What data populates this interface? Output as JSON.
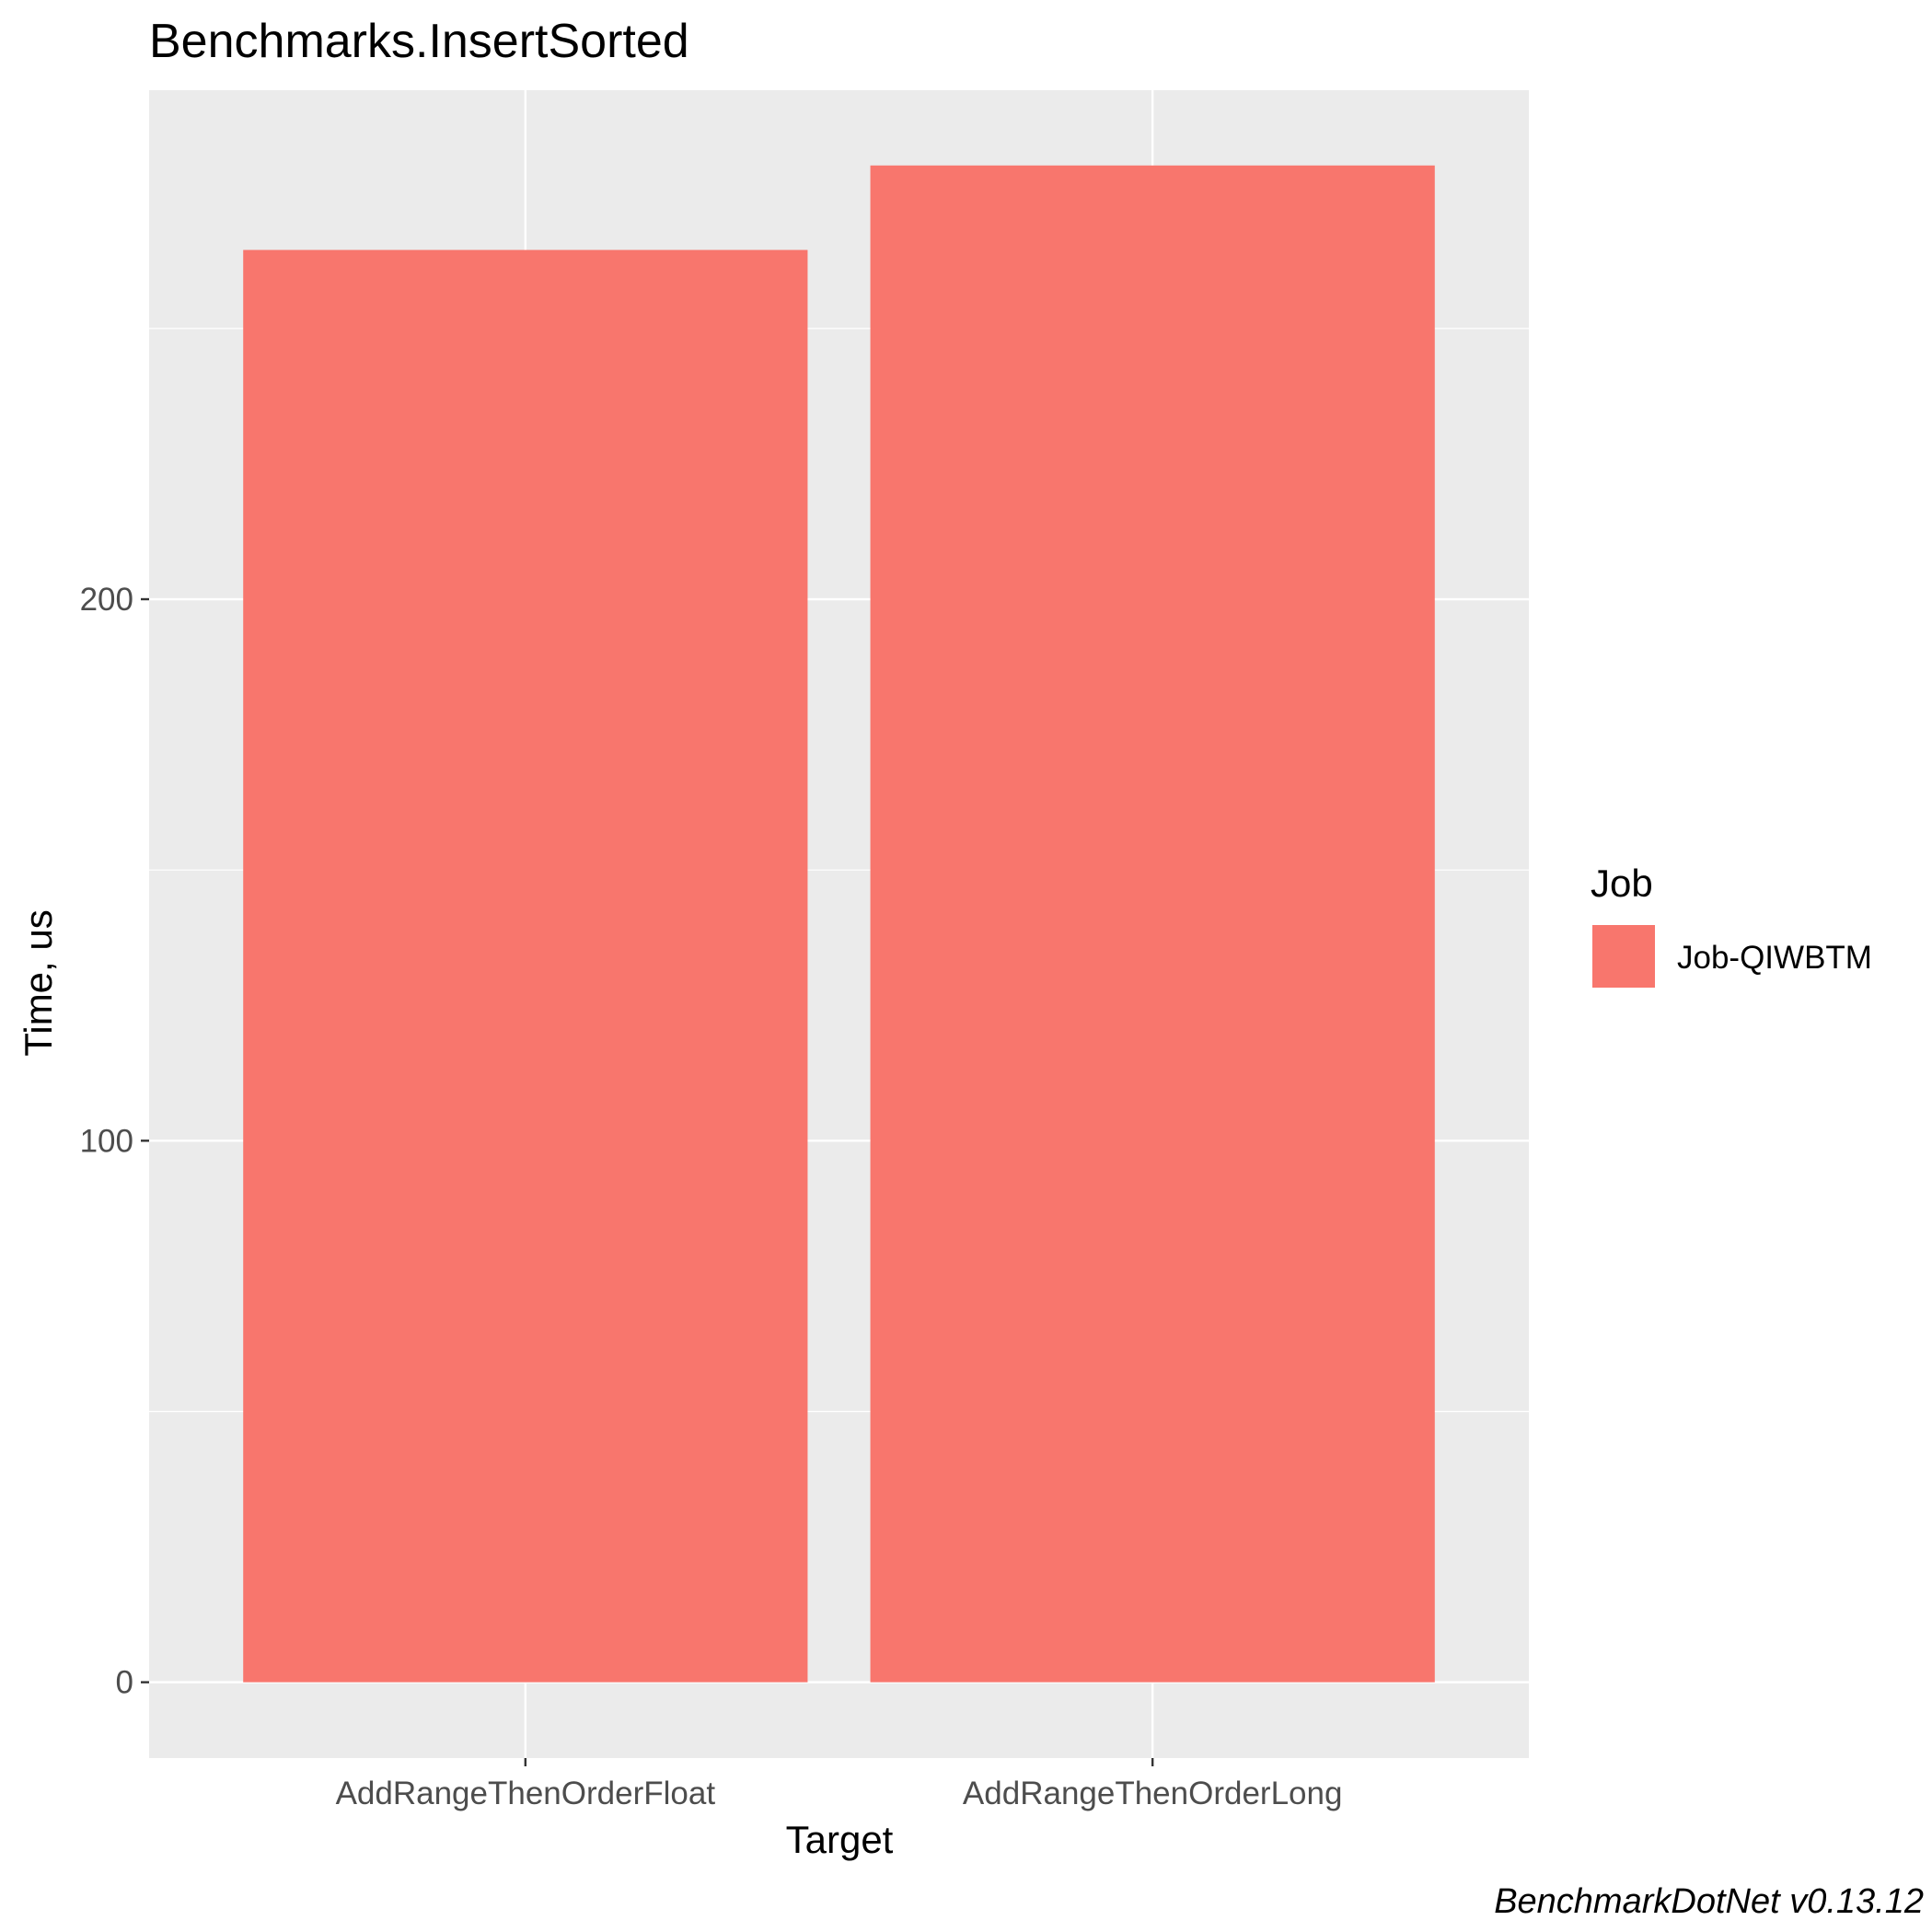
{
  "chart_data": {
    "type": "bar",
    "title": "Benchmarks.InsertSorted",
    "xlabel": "Target",
    "ylabel": "Time, us",
    "categories": [
      "AddRangeThenOrderFloat",
      "AddRangeThenOrderLong"
    ],
    "series": [
      {
        "name": "Job-QIWBTM",
        "values": [
          264.5,
          280.1
        ]
      }
    ],
    "yticks": [
      0,
      100,
      200
    ],
    "ylim": [
      -14,
      294
    ],
    "grid": true,
    "legend": {
      "title": "Job",
      "position": "right"
    },
    "caption": "BenchmarkDotNet v0.13.12"
  },
  "colors": {
    "panel_background": "#ebebeb",
    "grid_major": "#ffffff",
    "bar_fill": "#f8766d",
    "tick_text": "#4d4d4d",
    "tick_mark": "#333333"
  }
}
